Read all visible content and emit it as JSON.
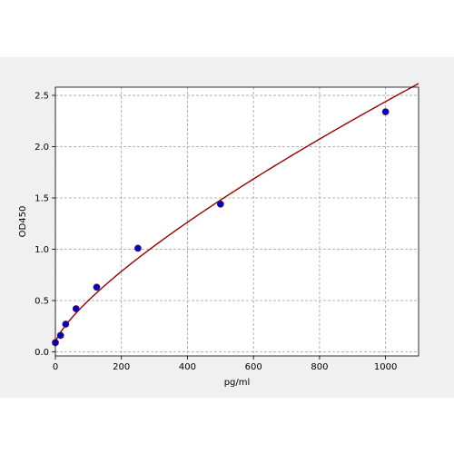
{
  "chart_data": {
    "type": "scatter",
    "title": "",
    "xlabel": "pg/ml",
    "ylabel": "OD450",
    "xlim": [
      0,
      1100
    ],
    "ylim": [
      -0.04,
      2.58
    ],
    "grid": true,
    "x_ticks": [
      0,
      200,
      400,
      600,
      800,
      1000
    ],
    "y_ticks": [
      0.0,
      0.5,
      1.0,
      1.5,
      2.0,
      2.5
    ],
    "x_tick_labels": [
      "0",
      "200",
      "400",
      "600",
      "800",
      "1000"
    ],
    "y_tick_labels": [
      "0.0",
      "0.5",
      "1.0",
      "1.5",
      "2.0",
      "2.5"
    ],
    "series": [
      {
        "kind": "points",
        "x": [
          0,
          15.6,
          31.25,
          62.5,
          125,
          250,
          500,
          1000
        ],
        "y": [
          0.09,
          0.16,
          0.27,
          0.42,
          0.63,
          1.01,
          1.44,
          2.34
        ]
      },
      {
        "kind": "fit-curve",
        "x": [
          0,
          10,
          25,
          50,
          75,
          100,
          150,
          200,
          250,
          300,
          400,
          500,
          600,
          700,
          800,
          900,
          1000,
          1100
        ],
        "y": [
          0.09,
          0.14,
          0.22,
          0.34,
          0.45,
          0.55,
          0.73,
          0.89,
          1.04,
          1.17,
          1.42,
          1.64,
          1.85,
          2.04,
          2.21,
          2.38,
          2.34,
          2.48
        ]
      }
    ],
    "colors": {
      "points": "#0000cc",
      "points_edge": "#7a1f1f",
      "curve": "#990000",
      "grid": "#a0a0a0",
      "axes_bg": "#ffffff",
      "figure_bg": "#f0f0f0"
    }
  }
}
